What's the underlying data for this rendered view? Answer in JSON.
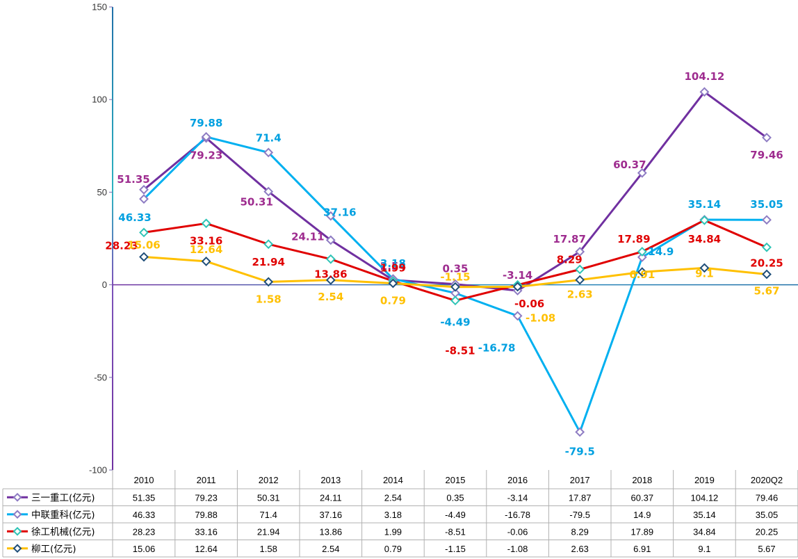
{
  "chart_data": {
    "type": "line",
    "categories": [
      "2010",
      "2011",
      "2012",
      "2013",
      "2014",
      "2015",
      "2016",
      "2017",
      "2018",
      "2019",
      "2020Q2"
    ],
    "ylim": [
      -100,
      150
    ],
    "yticks": [
      -100,
      -50,
      0,
      50,
      100,
      150
    ],
    "grid": false,
    "legend": "data-table-left",
    "series": [
      {
        "name": "三一重工(亿元)",
        "color": "#7030A0",
        "marker_fill": "#ffffff",
        "marker_stroke": "#8e7cc3",
        "values": [
          51.35,
          79.23,
          50.31,
          24.11,
          2.54,
          0.35,
          -3.14,
          17.87,
          60.37,
          104.12,
          79.46
        ]
      },
      {
        "name": "中联重科(亿元)",
        "color": "#00B0F0",
        "marker_fill": "#ffffff",
        "marker_stroke": "#8e7cc3",
        "values": [
          46.33,
          79.88,
          71.4,
          37.16,
          3.18,
          -4.49,
          -16.78,
          -79.5,
          14.9,
          35.14,
          35.05
        ]
      },
      {
        "name": "徐工机械(亿元)",
        "color": "#E00000",
        "marker_fill": "#ffffff",
        "marker_stroke": "#2ec4b6",
        "values": [
          28.23,
          33.16,
          21.94,
          13.86,
          1.99,
          -8.51,
          -0.06,
          8.29,
          17.89,
          34.84,
          20.25
        ]
      },
      {
        "name": "柳工(亿元)",
        "color": "#FFC000",
        "marker_fill": "#ffffff",
        "marker_stroke": "#1f4e79",
        "values": [
          15.06,
          12.64,
          1.58,
          2.54,
          0.79,
          -1.15,
          -1.08,
          2.63,
          6.91,
          9.1,
          5.67
        ]
      }
    ],
    "data_label_colors": [
      "#9E2C8F",
      "#00A0E0",
      "#E00000",
      "#FFC000"
    ]
  }
}
